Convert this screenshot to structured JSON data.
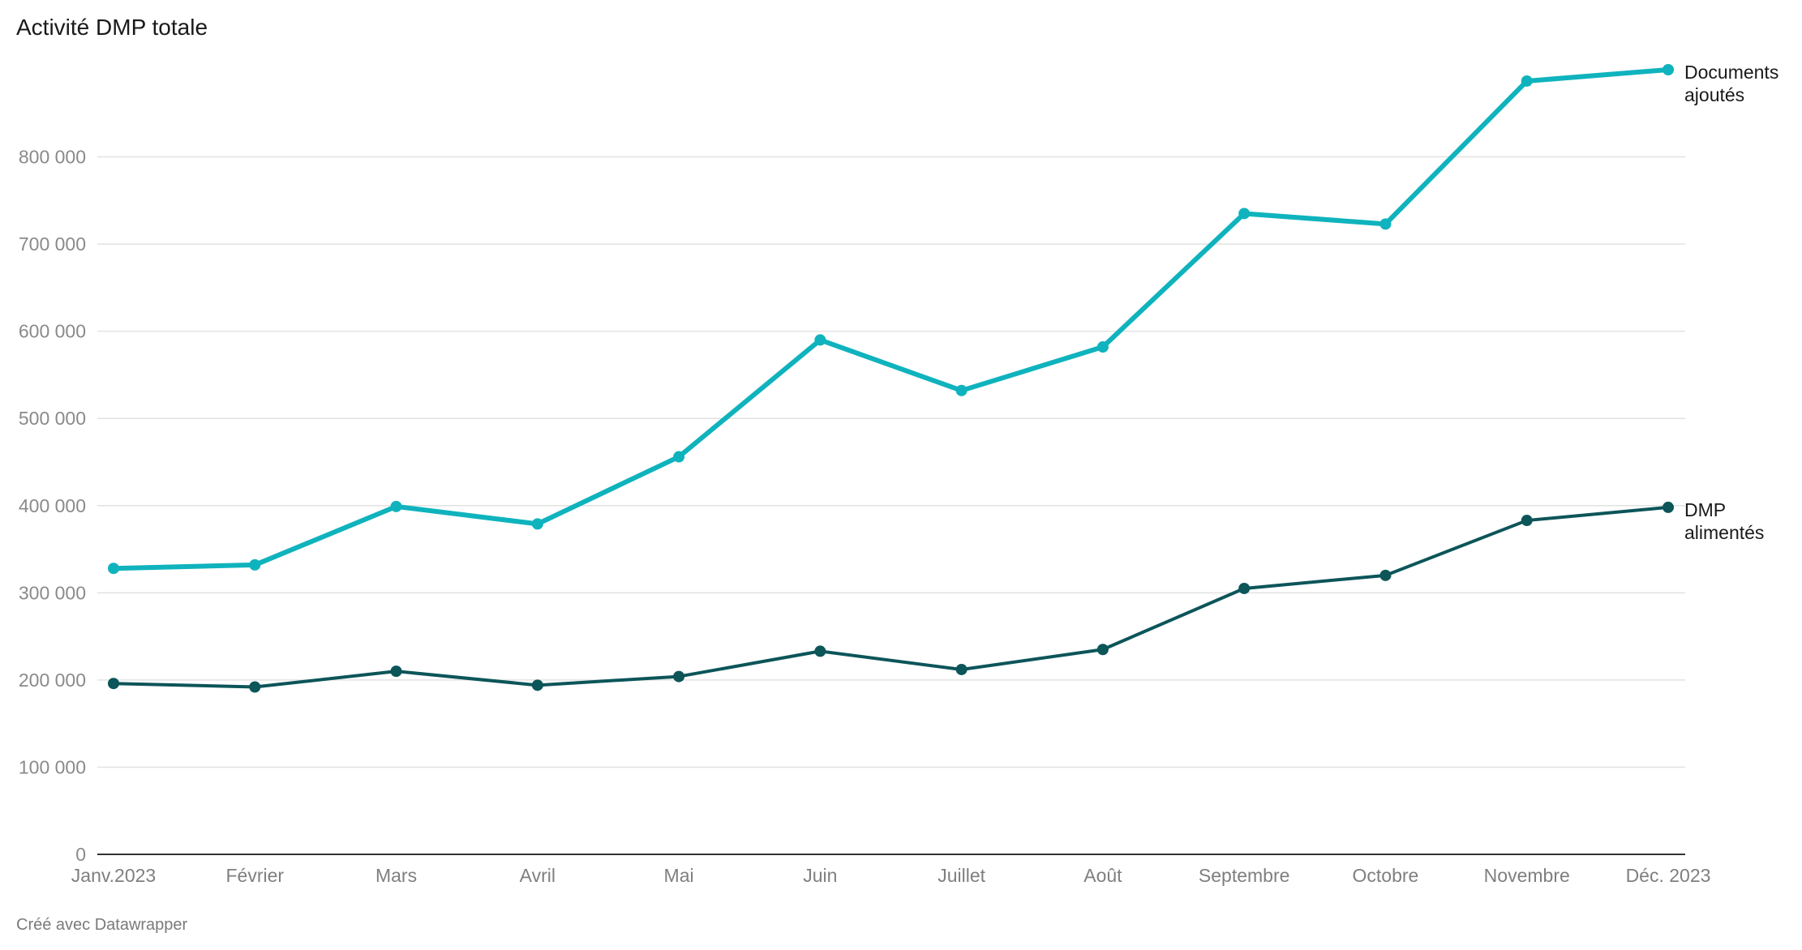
{
  "chart_data": {
    "type": "line",
    "title": "Activité DMP totale",
    "footer": "Créé avec Datawrapper",
    "categories": [
      "Janv.2023",
      "Février",
      "Mars",
      "Avril",
      "Mai",
      "Juin",
      "Juillet",
      "Août",
      "Septembre",
      "Octobre",
      "Novembre",
      "Déc. 2023"
    ],
    "y_ticks": [
      0,
      100000,
      200000,
      300000,
      400000,
      500000,
      600000,
      700000,
      800000
    ],
    "y_tick_labels": [
      "0",
      "100 000",
      "200 000",
      "300 000",
      "400 000",
      "500 000",
      "600 000",
      "700 000",
      "800 000"
    ],
    "ylim": [
      0,
      900000
    ],
    "grid": true,
    "series": [
      {
        "name_lines": [
          "Documents",
          "ajoutés"
        ],
        "color": "#0fb3bd",
        "values": [
          328000,
          332000,
          399000,
          379000,
          456000,
          590000,
          532000,
          582000,
          735000,
          723000,
          887000,
          900000
        ]
      },
      {
        "name_lines": [
          "DMP",
          "alimentés"
        ],
        "color": "#0c5559",
        "values": [
          196000,
          192000,
          210000,
          194000,
          204000,
          233000,
          212000,
          235000,
          305000,
          320000,
          383000,
          398000
        ]
      }
    ]
  }
}
